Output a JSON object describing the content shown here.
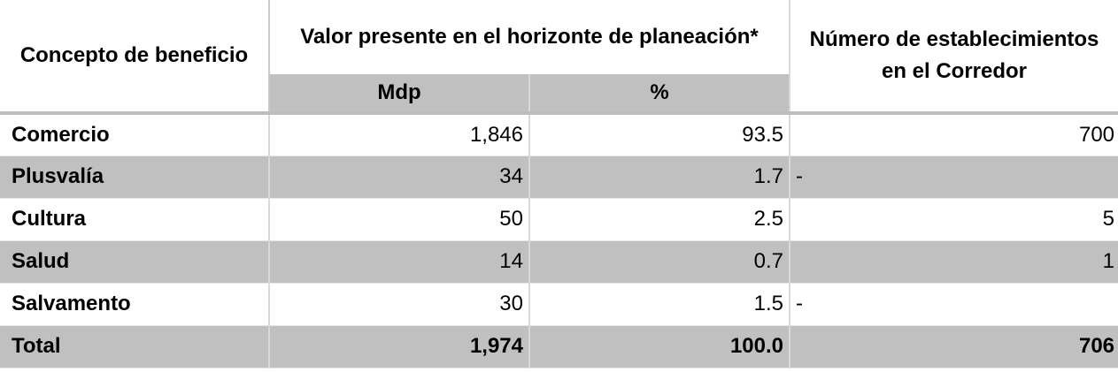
{
  "header": {
    "concepto": "Concepto de beneficio",
    "valor_presente": "Valor presente en el horizonte de planeación*",
    "numero": "Número de establecimientos en el Corredor",
    "mdp": "Mdp",
    "pct": "%"
  },
  "rows": [
    {
      "concepto": "Comercio",
      "mdp": "1,846",
      "pct": "93.5",
      "num": "700"
    },
    {
      "concepto": "Plusvalía",
      "mdp": "34",
      "pct": "1.7",
      "num": "-"
    },
    {
      "concepto": "Cultura",
      "mdp": "50",
      "pct": "2.5",
      "num": "5"
    },
    {
      "concepto": "Salud",
      "mdp": "14",
      "pct": "0.7",
      "num": "1"
    },
    {
      "concepto": "Salvamento",
      "mdp": "30",
      "pct": "1.5",
      "num": "-"
    }
  ],
  "total": {
    "concepto": "Total",
    "mdp": "1,974",
    "pct": "100.0",
    "num": "706"
  }
}
